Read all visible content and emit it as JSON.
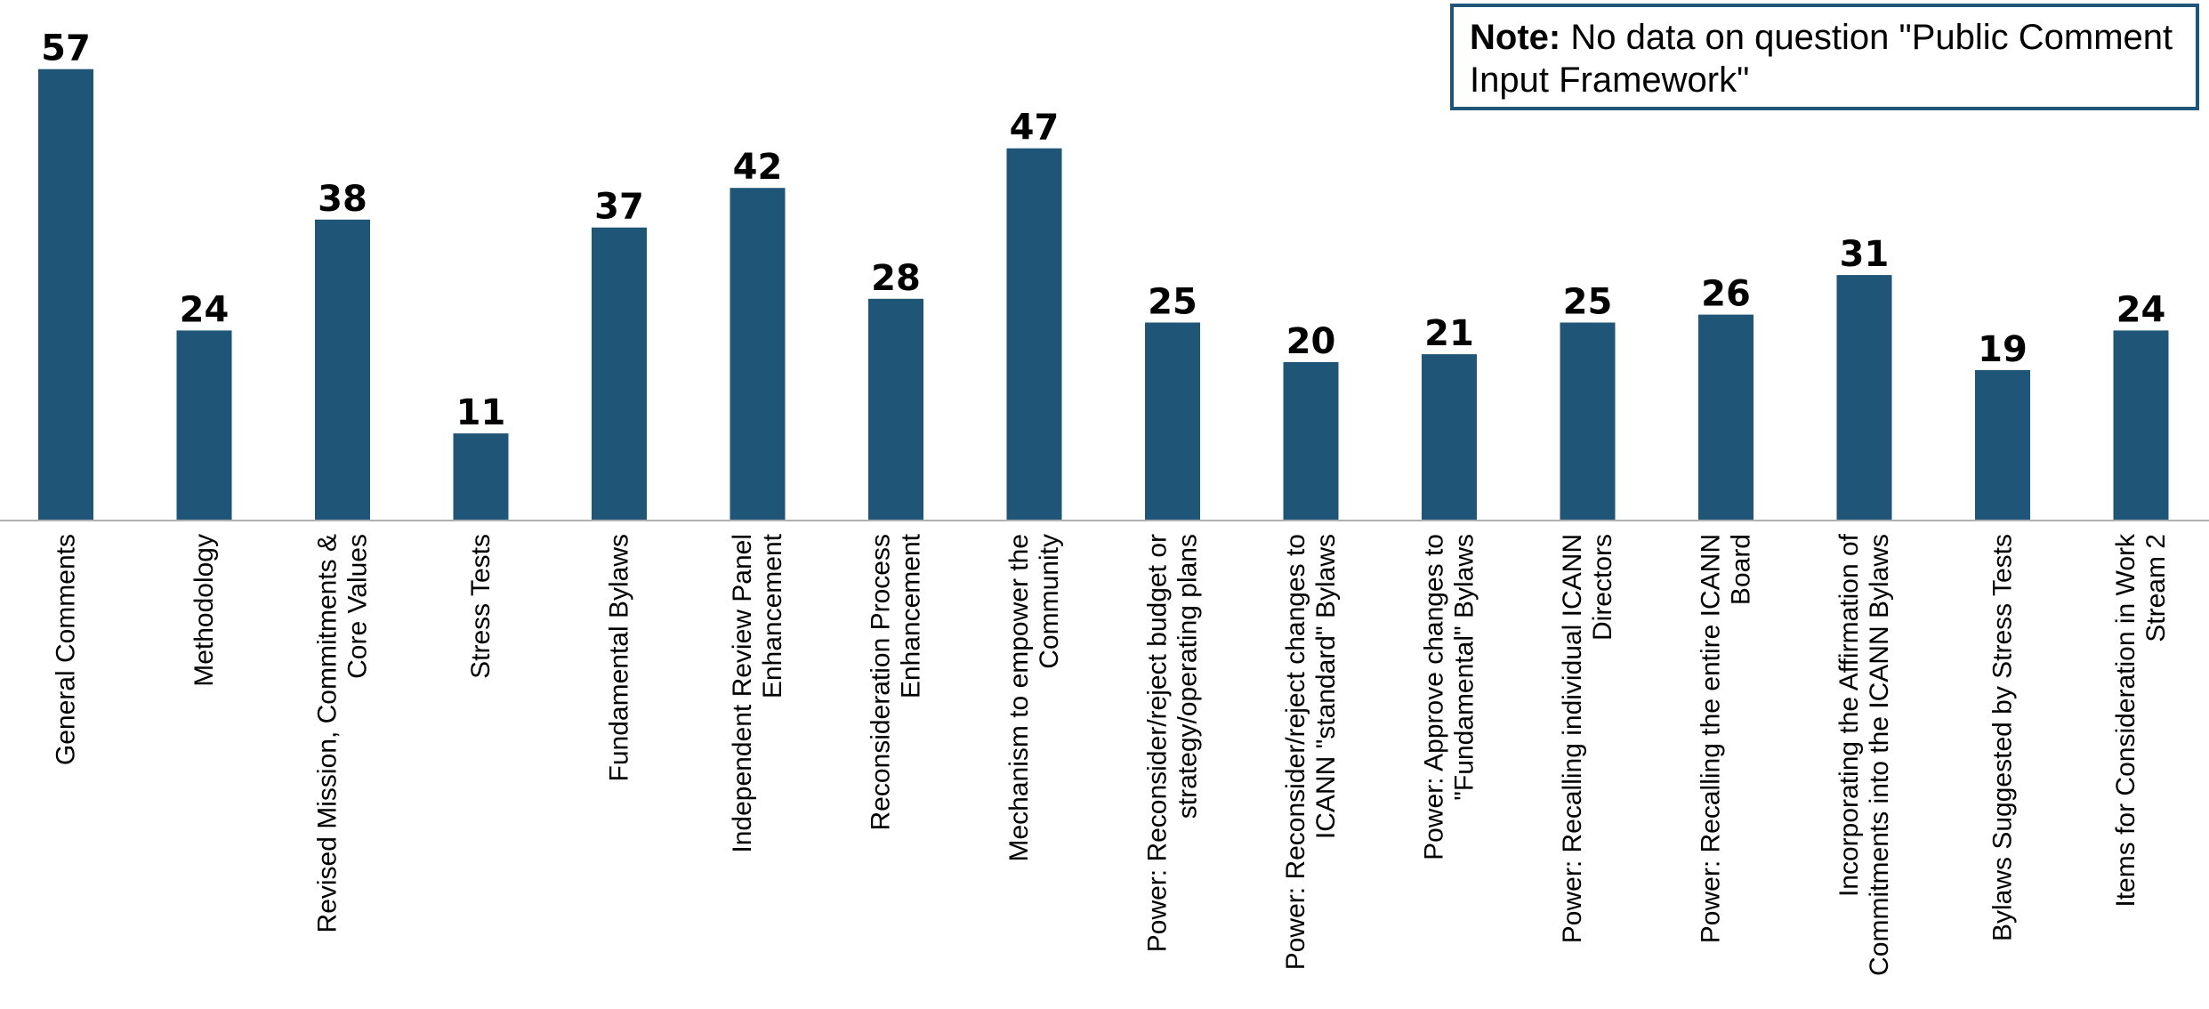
{
  "note": {
    "prefix": "Note:",
    "text": "No data on question \"Public Comment Input Framework\""
  },
  "colors": {
    "bar": "#1f5577",
    "axis": "#b0b0b0",
    "note_border": "#1f5577"
  },
  "chart_data": {
    "type": "bar",
    "title": "",
    "xlabel": "",
    "ylabel": "",
    "ylim": [
      0,
      60
    ],
    "grid": false,
    "categories": [
      [
        "General Comments"
      ],
      [
        "Methodology"
      ],
      [
        "Revised Mission, Commitments &",
        "Core Values"
      ],
      [
        "Stress Tests"
      ],
      [
        "Fundamental Bylaws"
      ],
      [
        "Independent Review Panel",
        "Enhancement"
      ],
      [
        "Reconsideration Process",
        "Enhancement"
      ],
      [
        "Mechanism to empower the",
        "Community"
      ],
      [
        "Power: Reconsider/reject budget or",
        "strategy/operating plans"
      ],
      [
        "Power: Reconsider/reject changes to",
        "ICANN \"standard\" Bylaws"
      ],
      [
        "Power: Approve changes to",
        "\"Fundamental\" Bylaws"
      ],
      [
        "Power: Recalling individual ICANN",
        "Directors"
      ],
      [
        "Power: Recalling the entire ICANN",
        "Board"
      ],
      [
        "Incorporating the Affirmation of",
        "Commitments into the ICANN Bylaws"
      ],
      [
        "Bylaws Suggested by Stress Tests"
      ],
      [
        "Items for Consideration in Work",
        "Stream 2"
      ]
    ],
    "values": [
      57,
      24,
      38,
      11,
      37,
      42,
      28,
      47,
      25,
      20,
      21,
      25,
      26,
      31,
      19,
      24
    ]
  }
}
